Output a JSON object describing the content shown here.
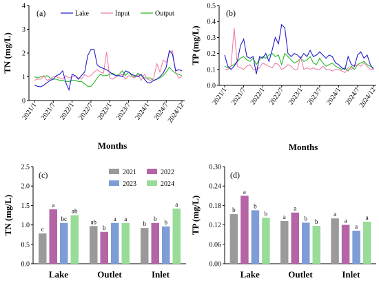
{
  "colors": {
    "lake": "#1f1fcc",
    "input": "#ee7fa6",
    "output": "#22bb22",
    "y2021": "#9a9a9a",
    "y2022": "#b565a6",
    "y2023": "#7e9dd6",
    "y2024": "#98dc98"
  },
  "chart_data": [
    {
      "id": "a",
      "type": "line",
      "panel_label": "(a)",
      "ylabel": "TN (mg/L)",
      "xlabel": "Months",
      "ylim": [
        0,
        4
      ],
      "yticks": [
        0,
        1,
        2,
        3,
        4
      ],
      "x_start": "2021/1",
      "x_end": "2024/12",
      "xticks": [
        {
          "label": "2021/1",
          "month": 0
        },
        {
          "label": "2021/7",
          "month": 6
        },
        {
          "label": "2022/1",
          "month": 12
        },
        {
          "label": "2022/7",
          "month": 18
        },
        {
          "label": "2023/1",
          "month": 24
        },
        {
          "label": "2023/7",
          "month": 30
        },
        {
          "label": "2024/1",
          "month": 36
        },
        {
          "label": "2024/7",
          "month": 42
        },
        {
          "label": "2024/12",
          "month": 47
        }
      ],
      "legend": [
        "Lake",
        "Input",
        "Output"
      ],
      "legend_position": "top",
      "series": [
        {
          "name": "Lake",
          "color_key": "lake",
          "values": [
            0.65,
            0.6,
            0.58,
            0.65,
            0.75,
            0.85,
            0.9,
            1.05,
            1.1,
            1.25,
            0.75,
            0.45,
            1.1,
            1.05,
            0.9,
            1.05,
            1.2,
            1.9,
            2.15,
            2.15,
            1.5,
            1.4,
            1.35,
            1.3,
            1.2,
            1.1,
            1.05,
            1.05,
            1.0,
            1.25,
            1.2,
            1.1,
            1.05,
            1.0,
            1.1,
            0.9,
            0.75,
            0.75,
            0.85,
            0.9,
            1.0,
            1.15,
            1.4,
            2.1,
            1.95,
            1.25,
            1.3,
            1.25
          ]
        },
        {
          "name": "Input",
          "color_key": "input",
          "values": [
            0.85,
            0.9,
            0.9,
            1.05,
            0.85,
            0.9,
            1.0,
            1.0,
            0.95,
            0.9,
            1.05,
            0.95,
            1.0,
            1.05,
            0.95,
            0.9,
            1.1,
            1.0,
            1.05,
            1.2,
            1.3,
            1.2,
            1.15,
            2.05,
            0.95,
            0.9,
            1.0,
            1.05,
            1.1,
            0.9,
            1.05,
            1.0,
            0.95,
            1.1,
            0.85,
            1.1,
            0.9,
            0.85,
            0.95,
            1.55,
            1.2,
            1.7,
            1.6,
            2.0,
            2.1,
            1.2,
            0.95,
            1.0
          ]
        },
        {
          "name": "Output",
          "color_key": "output",
          "values": [
            1.0,
            0.95,
            1.0,
            1.0,
            1.05,
            0.95,
            0.9,
            0.9,
            0.85,
            0.85,
            0.8,
            0.8,
            0.85,
            0.85,
            0.8,
            0.8,
            0.7,
            0.6,
            0.6,
            0.75,
            0.95,
            1.1,
            1.05,
            1.05,
            1.1,
            1.15,
            1.05,
            1.1,
            1.25,
            1.05,
            1.2,
            1.05,
            1.0,
            1.15,
            1.05,
            0.95,
            0.95,
            0.95,
            0.85,
            0.9,
            0.95,
            1.05,
            1.2,
            1.4,
            1.25,
            1.15,
            1.1,
            1.05
          ]
        }
      ]
    },
    {
      "id": "b",
      "type": "line",
      "panel_label": "(b)",
      "ylabel": "TP (mg/L)",
      "xlabel": "Months",
      "ylim": [
        0,
        0.5
      ],
      "yticks": [
        0.0,
        0.1,
        0.2,
        0.3,
        0.4,
        0.5
      ],
      "ytick_labels": [
        "0.0",
        "0.1",
        "0.2",
        "0.3",
        "0.4",
        "0.5"
      ],
      "x_start": "2021/1",
      "x_end": "2024/12",
      "xticks": [
        {
          "label": "2021/1",
          "month": 0
        },
        {
          "label": "2021/7",
          "month": 6
        },
        {
          "label": "2022/1",
          "month": 12
        },
        {
          "label": "2022/7",
          "month": 18
        },
        {
          "label": "2023/1",
          "month": 24
        },
        {
          "label": "2023/7",
          "month": 30
        },
        {
          "label": "2024/1",
          "month": 36
        },
        {
          "label": "2024/7",
          "month": 42
        },
        {
          "label": "2024/12",
          "month": 47
        }
      ],
      "series": [
        {
          "name": "Lake",
          "color_key": "lake",
          "values": [
            0.19,
            0.12,
            0.1,
            0.12,
            0.15,
            0.25,
            0.29,
            0.18,
            0.17,
            0.18,
            0.07,
            0.18,
            0.17,
            0.2,
            0.15,
            0.22,
            0.3,
            0.26,
            0.38,
            0.36,
            0.2,
            0.18,
            0.2,
            0.19,
            0.17,
            0.2,
            0.18,
            0.22,
            0.18,
            0.19,
            0.21,
            0.19,
            0.17,
            0.19,
            0.18,
            0.14,
            0.13,
            0.11,
            0.1,
            0.18,
            0.13,
            0.12,
            0.19,
            0.21,
            0.17,
            0.19,
            0.13,
            0.1
          ]
        },
        {
          "name": "Input",
          "color_key": "input",
          "values": [
            0.1,
            0.1,
            0.12,
            0.36,
            0.12,
            0.11,
            0.1,
            0.12,
            0.13,
            0.1,
            0.1,
            0.11,
            0.14,
            0.13,
            0.12,
            0.11,
            0.14,
            0.13,
            0.1,
            0.11,
            0.13,
            0.12,
            0.1,
            0.1,
            0.18,
            0.1,
            0.11,
            0.1,
            0.11,
            0.1,
            0.1,
            0.12,
            0.1,
            0.1,
            0.09,
            0.1,
            0.1,
            0.09,
            0.08,
            0.11,
            0.1,
            0.12,
            0.13,
            0.12,
            0.14,
            0.12,
            0.1,
            0.1
          ]
        },
        {
          "name": "Output",
          "color_key": "output",
          "values": [
            0.12,
            0.11,
            0.12,
            0.13,
            0.15,
            0.17,
            0.18,
            0.16,
            0.15,
            0.17,
            0.13,
            0.16,
            0.18,
            0.17,
            0.19,
            0.2,
            0.18,
            0.19,
            0.13,
            0.2,
            0.18,
            0.16,
            0.14,
            0.15,
            0.17,
            0.15,
            0.16,
            0.18,
            0.14,
            0.13,
            0.17,
            0.14,
            0.12,
            0.13,
            0.14,
            0.12,
            0.11,
            0.1,
            0.11,
            0.09,
            0.12,
            0.1,
            0.13,
            0.14,
            0.15,
            0.13,
            0.12,
            0.11
          ]
        }
      ]
    },
    {
      "id": "c",
      "type": "bar",
      "panel_label": "(c)",
      "ylabel": "TN (mg/L)",
      "ylim": [
        0,
        2.5
      ],
      "yticks": [
        0.0,
        0.5,
        1.0,
        1.5,
        2.0,
        2.5
      ],
      "ytick_labels": [
        "0.0",
        "0.5",
        "1.0",
        "1.5",
        "2.0",
        "2.5"
      ],
      "categories": [
        "Lake",
        "Outlet",
        "Inlet"
      ],
      "legend": [
        "2021",
        "2022",
        "2023",
        "2024"
      ],
      "legend_position": "top-right",
      "series": [
        {
          "name": "2021",
          "color_key": "y2021",
          "values": [
            0.78,
            0.97,
            0.92
          ],
          "labels": [
            "c",
            "ab",
            "b"
          ]
        },
        {
          "name": "2022",
          "color_key": "y2022",
          "values": [
            1.4,
            0.82,
            1.05
          ],
          "labels": [
            "a",
            "b",
            "b"
          ]
        },
        {
          "name": "2023",
          "color_key": "y2023",
          "values": [
            1.05,
            1.05,
            0.96
          ],
          "labels": [
            "bc",
            "a",
            "b"
          ]
        },
        {
          "name": "2024",
          "color_key": "y2024",
          "values": [
            1.25,
            1.05,
            1.42
          ],
          "labels": [
            "ab",
            "a",
            "a"
          ]
        }
      ]
    },
    {
      "id": "d",
      "type": "bar",
      "panel_label": "(d)",
      "ylabel": "TP (mg/L)",
      "ylim": [
        0,
        0.3
      ],
      "yticks": [
        0.0,
        0.06,
        0.12,
        0.18,
        0.24,
        0.3
      ],
      "ytick_labels": [
        "0.00",
        "0.06",
        "0.12",
        "0.18",
        "0.24",
        "0.30"
      ],
      "categories": [
        "Lake",
        "Outlet",
        "Inlet"
      ],
      "series": [
        {
          "name": "2021",
          "color_key": "y2021",
          "values": [
            0.153,
            0.132,
            0.14
          ],
          "labels": [
            "b",
            "a",
            "a"
          ]
        },
        {
          "name": "2022",
          "color_key": "y2022",
          "values": [
            0.21,
            0.158,
            0.12
          ],
          "labels": [
            "a",
            "a",
            "a"
          ]
        },
        {
          "name": "2023",
          "color_key": "y2023",
          "values": [
            0.165,
            0.127,
            0.102
          ],
          "labels": [
            "b",
            "b",
            "a"
          ]
        },
        {
          "name": "2024",
          "color_key": "y2024",
          "values": [
            0.142,
            0.117,
            0.13
          ],
          "labels": [
            "b",
            "b",
            "a"
          ]
        }
      ]
    }
  ]
}
